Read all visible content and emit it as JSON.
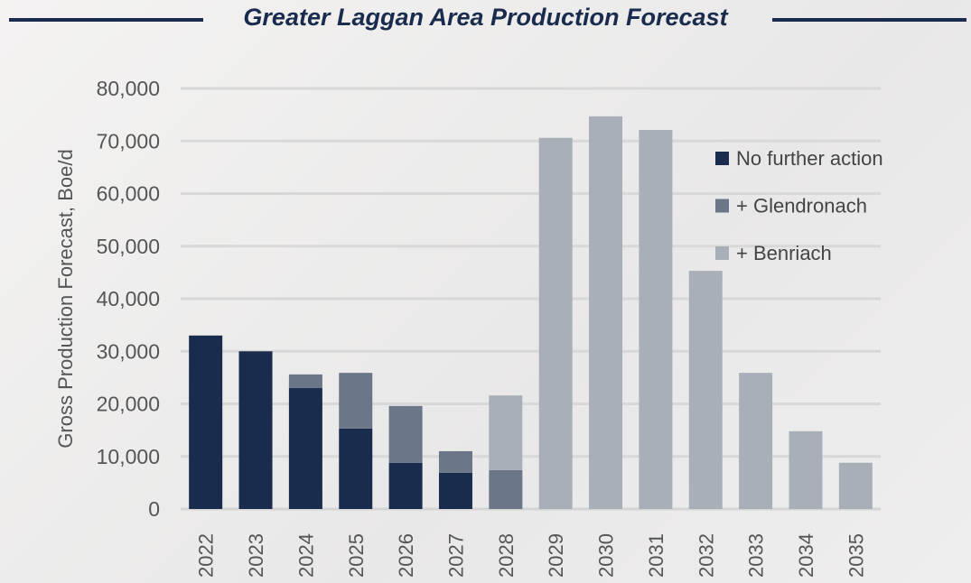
{
  "chart_data": {
    "type": "bar",
    "stacked": true,
    "title": "Greater Laggan Area Production Forecast",
    "xlabel": "",
    "ylabel": "Gross Production Forecast, Boe/d",
    "ylim": [
      0,
      80000
    ],
    "yticks": [
      0,
      10000,
      20000,
      30000,
      40000,
      50000,
      60000,
      70000,
      80000
    ],
    "ytick_labels": [
      "0",
      "10,000",
      "20,000",
      "30,000",
      "40,000",
      "50,000",
      "60,000",
      "70,000",
      "80,000"
    ],
    "grid": true,
    "legend_position": "top-right",
    "categories": [
      "2022",
      "2023",
      "2024",
      "2025",
      "2026",
      "2027",
      "2028",
      "2029",
      "2030",
      "2031",
      "2032",
      "2033",
      "2034",
      "2035"
    ],
    "series": [
      {
        "name": "No further action",
        "color": "#1a2c4e",
        "values": [
          33000,
          30000,
          23000,
          15300,
          8800,
          6900,
          0,
          0,
          0,
          0,
          0,
          0,
          0,
          0
        ]
      },
      {
        "name": "+ Glendronach",
        "color": "#6b7789",
        "values": [
          0,
          0,
          2600,
          10600,
          10800,
          4100,
          7400,
          0,
          0,
          0,
          0,
          0,
          0,
          0
        ]
      },
      {
        "name": "+ Benriach",
        "color": "#a9afb9",
        "values": [
          0,
          0,
          0,
          0,
          0,
          0,
          14200,
          70600,
          74700,
          72100,
          45300,
          25900,
          14800,
          8800
        ]
      }
    ]
  }
}
